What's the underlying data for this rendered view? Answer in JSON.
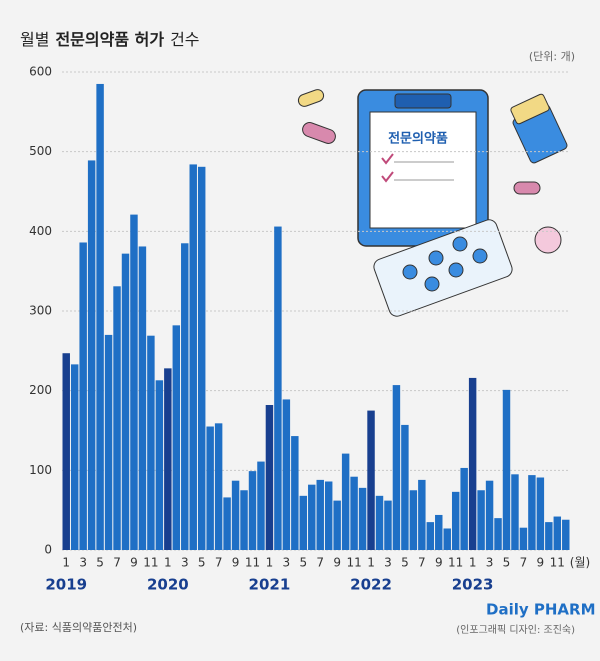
{
  "chart_data": {
    "type": "bar",
    "title_parts": [
      "월별",
      "전문의약품 허가",
      "건수"
    ],
    "unit": "(단위: 개)",
    "categories": [
      "1",
      null,
      "3",
      null,
      "5",
      null,
      "7",
      null,
      "9",
      null,
      "11",
      null,
      "1",
      null,
      "3",
      null,
      "5",
      null,
      "7",
      null,
      "9",
      null,
      "11",
      null,
      "1",
      null,
      "3",
      null,
      "5",
      null,
      "7",
      null,
      "9",
      null,
      "11",
      null,
      "1",
      null,
      "3",
      null,
      "5",
      null,
      "7",
      null,
      "9",
      null,
      "11",
      null,
      "1",
      null,
      "3",
      null,
      "5",
      null,
      "7",
      null,
      "9",
      null,
      "11",
      null
    ],
    "x_unit": "(월)",
    "year_labels": [
      "2019",
      "2020",
      "2021",
      "2022",
      "2023"
    ],
    "values": [
      247,
      233,
      386,
      489,
      585,
      270,
      331,
      372,
      421,
      381,
      269,
      213,
      228,
      282,
      385,
      484,
      481,
      155,
      159,
      66,
      87,
      75,
      99,
      111,
      182,
      406,
      189,
      143,
      68,
      82,
      88,
      86,
      62,
      121,
      92,
      78,
      175,
      68,
      62,
      207,
      157,
      75,
      88,
      35,
      44,
      27,
      73,
      103,
      216,
      75,
      87,
      40,
      201,
      95,
      28,
      94,
      91,
      35,
      42,
      38
    ],
    "color": "#1f6fc5",
    "highlight_color": "#183f8f",
    "ylim": [
      0,
      600
    ],
    "yticks": [
      0,
      100,
      200,
      300,
      400,
      500,
      600
    ],
    "grid": true,
    "source": "(자료: 식품의약품안전처)"
  },
  "illustration_label": "전문의약품",
  "logo": "Daily PHARM",
  "credit": "(인포그래픽 디자인: 조진숙)"
}
